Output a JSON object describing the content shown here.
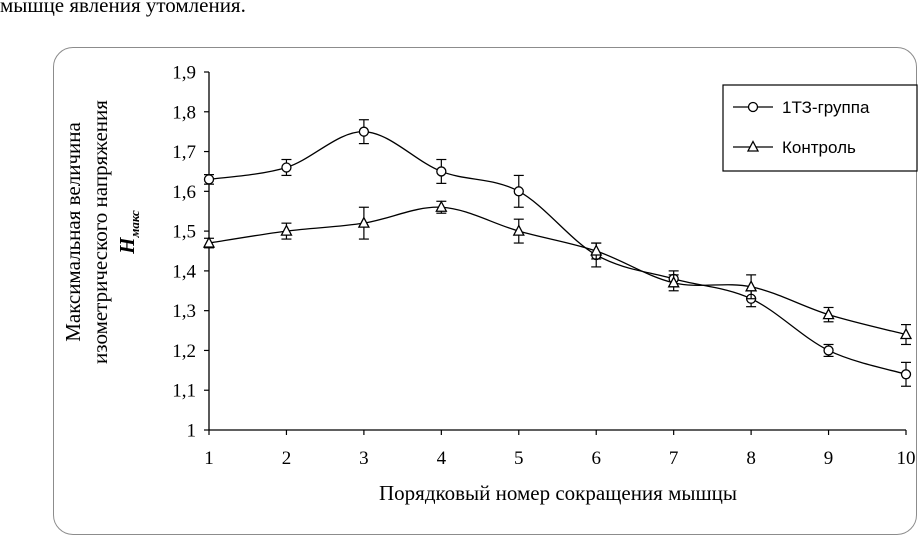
{
  "page": {
    "top_text": "мышце явления утомления."
  },
  "chart_data": {
    "type": "line",
    "title": "",
    "xlabel": "Порядковый номер сокращения мышцы",
    "ylabel_lines": [
      "Максимальная величина",
      "изометрического напряжения"
    ],
    "ylabel_symbol": "H",
    "ylabel_subscript": "макс",
    "x": [
      1,
      2,
      3,
      4,
      5,
      6,
      7,
      8,
      9,
      10
    ],
    "x_ticks": [
      "1",
      "2",
      "3",
      "4",
      "5",
      "6",
      "7",
      "8",
      "9",
      "10"
    ],
    "y_ticks": [
      "1",
      "1,1",
      "1,2",
      "1,3",
      "1,4",
      "1,5",
      "1,6",
      "1,7",
      "1,8",
      "1,9"
    ],
    "ylim": [
      1.0,
      1.9
    ],
    "xlim": [
      1,
      10
    ],
    "grid": false,
    "legend_position": "top-right",
    "series": [
      {
        "name": "1ТЗ-группа",
        "marker": "circle",
        "values": [
          1.63,
          1.66,
          1.75,
          1.65,
          1.6,
          1.44,
          1.38,
          1.33,
          1.2,
          1.14
        ],
        "errors": [
          0.012,
          0.02,
          0.03,
          0.03,
          0.04,
          0.03,
          0.02,
          0.02,
          0.015,
          0.03
        ]
      },
      {
        "name": "Контроль",
        "marker": "triangle",
        "values": [
          1.47,
          1.5,
          1.52,
          1.56,
          1.5,
          1.45,
          1.37,
          1.36,
          1.29,
          1.24
        ],
        "errors": [
          0.012,
          0.02,
          0.04,
          0.015,
          0.03,
          0.02,
          0.02,
          0.03,
          0.018,
          0.025
        ]
      }
    ]
  }
}
